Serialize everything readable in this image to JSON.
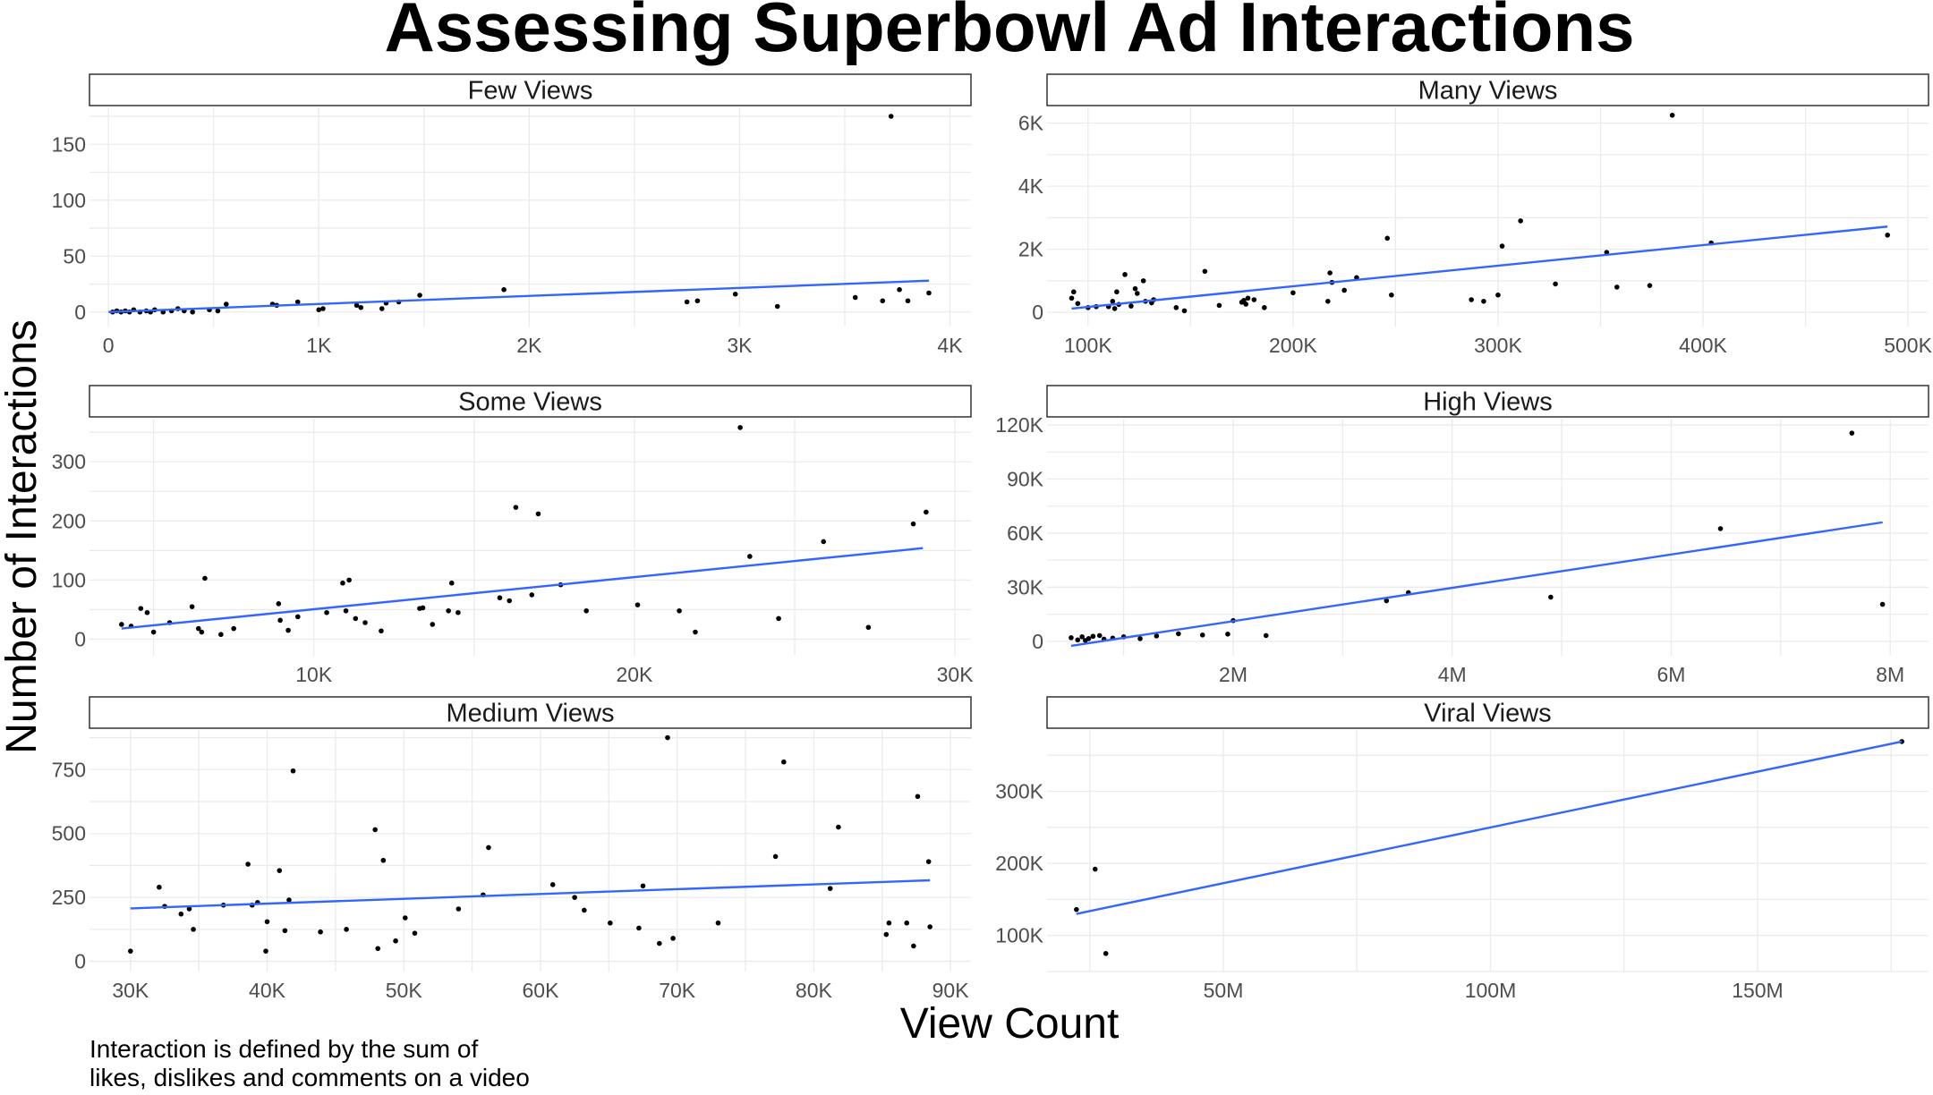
{
  "chart_data": {
    "title": "Assessing Superbowl Ad Interactions",
    "xlabel": "View Count",
    "ylabel": "Number of Interactions",
    "caption_lines": [
      "Interaction is defined by the sum of",
      "likes, dislikes and comments on a video"
    ],
    "panels": [
      {
        "type": "scatter",
        "strip": "Few Views",
        "xlim": [
          -90,
          4100
        ],
        "ylim": [
          -13,
          183
        ],
        "xticks": [
          0,
          1000,
          2000,
          3000,
          4000
        ],
        "xtick_labels": [
          "0",
          "1K",
          "2K",
          "3K",
          "4K"
        ],
        "yticks": [
          0,
          50,
          100,
          150
        ],
        "ytick_labels": [
          "0",
          "50",
          "100",
          "150"
        ],
        "points": [
          [
            20,
            0
          ],
          [
            40,
            1
          ],
          [
            60,
            0
          ],
          [
            80,
            1
          ],
          [
            100,
            0
          ],
          [
            120,
            2
          ],
          [
            150,
            0
          ],
          [
            180,
            1
          ],
          [
            200,
            0
          ],
          [
            220,
            2
          ],
          [
            260,
            0
          ],
          [
            300,
            1
          ],
          [
            330,
            3
          ],
          [
            360,
            1
          ],
          [
            400,
            0
          ],
          [
            480,
            2
          ],
          [
            520,
            1
          ],
          [
            560,
            7
          ],
          [
            780,
            7
          ],
          [
            800,
            6
          ],
          [
            900,
            9
          ],
          [
            1000,
            2
          ],
          [
            1020,
            3
          ],
          [
            1180,
            6
          ],
          [
            1200,
            4
          ],
          [
            1300,
            3
          ],
          [
            1320,
            8
          ],
          [
            1380,
            9
          ],
          [
            1480,
            15
          ],
          [
            1880,
            20
          ],
          [
            2750,
            9
          ],
          [
            2800,
            10
          ],
          [
            2980,
            16
          ],
          [
            3180,
            5
          ],
          [
            3550,
            13
          ],
          [
            3680,
            10
          ],
          [
            3720,
            175
          ],
          [
            3760,
            20
          ],
          [
            3800,
            10
          ],
          [
            3900,
            17
          ]
        ],
        "trend": [
          [
            0,
            0
          ],
          [
            3900,
            28
          ]
        ]
      },
      {
        "type": "scatter",
        "strip": "Many Views",
        "xlim": [
          80000,
          510000
        ],
        "ylim": [
          -450,
          6500
        ],
        "xticks": [
          100000,
          200000,
          300000,
          400000,
          500000
        ],
        "xtick_labels": [
          "100K",
          "200K",
          "300K",
          "400K",
          "500K"
        ],
        "yticks": [
          0,
          2000,
          4000,
          6000
        ],
        "ytick_labels": [
          "0",
          "2K",
          "4K",
          "6K"
        ],
        "points": [
          [
            92000,
            450
          ],
          [
            93000,
            650
          ],
          [
            95000,
            280
          ],
          [
            100000,
            150
          ],
          [
            104000,
            180
          ],
          [
            110000,
            180
          ],
          [
            112000,
            350
          ],
          [
            113000,
            120
          ],
          [
            114000,
            650
          ],
          [
            115000,
            250
          ],
          [
            118000,
            1200
          ],
          [
            121000,
            200
          ],
          [
            123000,
            750
          ],
          [
            124000,
            600
          ],
          [
            127000,
            1000
          ],
          [
            128000,
            350
          ],
          [
            131000,
            300
          ],
          [
            132000,
            400
          ],
          [
            143000,
            150
          ],
          [
            147000,
            50
          ],
          [
            157000,
            1300
          ],
          [
            164000,
            220
          ],
          [
            175000,
            320
          ],
          [
            176000,
            380
          ],
          [
            177000,
            260
          ],
          [
            178000,
            450
          ],
          [
            181000,
            400
          ],
          [
            186000,
            150
          ],
          [
            200000,
            620
          ],
          [
            217000,
            350
          ],
          [
            218000,
            1250
          ],
          [
            219000,
            950
          ],
          [
            225000,
            700
          ],
          [
            231000,
            1100
          ],
          [
            246000,
            2350
          ],
          [
            248000,
            550
          ],
          [
            287000,
            400
          ],
          [
            293000,
            350
          ],
          [
            300000,
            550
          ],
          [
            302000,
            2100
          ],
          [
            311000,
            2900
          ],
          [
            328000,
            900
          ],
          [
            353000,
            1900
          ],
          [
            358000,
            800
          ],
          [
            374000,
            850
          ],
          [
            385000,
            6250
          ],
          [
            404000,
            2200
          ],
          [
            490000,
            2450
          ]
        ],
        "trend": [
          [
            92000,
            120
          ],
          [
            490000,
            2720
          ]
        ]
      },
      {
        "type": "scatter",
        "strip": "Some Views",
        "xlim": [
          3000,
          30500
        ],
        "ylim": [
          -28,
          373
        ],
        "xticks": [
          10000,
          20000,
          30000
        ],
        "xtick_labels": [
          "10K",
          "20K",
          "30K"
        ],
        "yticks": [
          0,
          100,
          200,
          300
        ],
        "ytick_labels": [
          "0",
          "100",
          "200",
          "300"
        ],
        "points": [
          [
            4000,
            25
          ],
          [
            4300,
            22
          ],
          [
            4600,
            52
          ],
          [
            4800,
            45
          ],
          [
            5000,
            12
          ],
          [
            5500,
            28
          ],
          [
            6200,
            55
          ],
          [
            6400,
            18
          ],
          [
            6500,
            12
          ],
          [
            6600,
            103
          ],
          [
            7100,
            8
          ],
          [
            7500,
            18
          ],
          [
            8900,
            60
          ],
          [
            8950,
            32
          ],
          [
            9200,
            15
          ],
          [
            9500,
            38
          ],
          [
            10400,
            45
          ],
          [
            10900,
            95
          ],
          [
            11000,
            48
          ],
          [
            11100,
            100
          ],
          [
            11300,
            35
          ],
          [
            11600,
            28
          ],
          [
            12100,
            14
          ],
          [
            13300,
            52
          ],
          [
            13400,
            53
          ],
          [
            13700,
            25
          ],
          [
            14200,
            48
          ],
          [
            14300,
            95
          ],
          [
            14500,
            45
          ],
          [
            15800,
            70
          ],
          [
            16100,
            65
          ],
          [
            16300,
            223
          ],
          [
            16800,
            75
          ],
          [
            17000,
            212
          ],
          [
            17700,
            92
          ],
          [
            18500,
            48
          ],
          [
            20100,
            58
          ],
          [
            21400,
            48
          ],
          [
            21900,
            12
          ],
          [
            23300,
            358
          ],
          [
            23600,
            140
          ],
          [
            24500,
            35
          ],
          [
            25900,
            165
          ],
          [
            27300,
            20
          ],
          [
            28700,
            195
          ],
          [
            29100,
            215
          ]
        ],
        "trend": [
          [
            4000,
            18
          ],
          [
            29000,
            154
          ]
        ]
      },
      {
        "type": "scatter",
        "strip": "High Views",
        "xlim": [
          300000,
          8350000
        ],
        "ylim": [
          -8000,
          123500
        ],
        "xticks": [
          2000000,
          4000000,
          6000000,
          8000000
        ],
        "xtick_labels": [
          "2M",
          "4M",
          "6M",
          "8M"
        ],
        "yticks": [
          0,
          30000,
          60000,
          90000,
          120000
        ],
        "ytick_labels": [
          "0",
          "30K",
          "60K",
          "90K",
          "120K"
        ],
        "points": [
          [
            520000,
            2000
          ],
          [
            580000,
            800
          ],
          [
            620000,
            2500
          ],
          [
            650000,
            500
          ],
          [
            680000,
            1500
          ],
          [
            720000,
            2800
          ],
          [
            780000,
            3200
          ],
          [
            820000,
            1200
          ],
          [
            900000,
            1800
          ],
          [
            1000000,
            2500
          ],
          [
            1150000,
            1500
          ],
          [
            1300000,
            3000
          ],
          [
            1500000,
            4200
          ],
          [
            1720000,
            3500
          ],
          [
            1950000,
            4000
          ],
          [
            2000000,
            11500
          ],
          [
            2300000,
            3200
          ],
          [
            3400000,
            22500
          ],
          [
            3600000,
            27000
          ],
          [
            4900000,
            24500
          ],
          [
            6450000,
            62500
          ],
          [
            7650000,
            115500
          ],
          [
            7930000,
            20500
          ]
        ],
        "trend": [
          [
            520000,
            -2500
          ],
          [
            7930000,
            66000
          ]
        ]
      },
      {
        "type": "scatter",
        "strip": "Medium Views",
        "xlim": [
          27000,
          91500
        ],
        "ylim": [
          -40,
          905
        ],
        "xticks": [
          30000,
          40000,
          50000,
          60000,
          70000,
          80000,
          90000
        ],
        "xtick_labels": [
          "30K",
          "40K",
          "50K",
          "60K",
          "70K",
          "80K",
          "90K"
        ],
        "yticks": [
          0,
          250,
          500,
          750
        ],
        "ytick_labels": [
          "0",
          "250",
          "500",
          "750"
        ],
        "points": [
          [
            30000,
            40
          ],
          [
            32100,
            290
          ],
          [
            32500,
            215
          ],
          [
            33700,
            185
          ],
          [
            34300,
            205
          ],
          [
            34600,
            125
          ],
          [
            36800,
            220
          ],
          [
            38600,
            380
          ],
          [
            38900,
            220
          ],
          [
            39300,
            230
          ],
          [
            39900,
            40
          ],
          [
            40000,
            155
          ],
          [
            40900,
            355
          ],
          [
            41300,
            120
          ],
          [
            41600,
            240
          ],
          [
            41900,
            745
          ],
          [
            43900,
            115
          ],
          [
            45800,
            125
          ],
          [
            47900,
            515
          ],
          [
            48100,
            50
          ],
          [
            48500,
            395
          ],
          [
            49400,
            80
          ],
          [
            50100,
            170
          ],
          [
            50800,
            110
          ],
          [
            54000,
            205
          ],
          [
            55800,
            260
          ],
          [
            56200,
            445
          ],
          [
            60900,
            300
          ],
          [
            62500,
            250
          ],
          [
            63200,
            200
          ],
          [
            65100,
            150
          ],
          [
            67200,
            130
          ],
          [
            67500,
            295
          ],
          [
            68700,
            70
          ],
          [
            69300,
            875
          ],
          [
            69700,
            90
          ],
          [
            73000,
            150
          ],
          [
            77200,
            410
          ],
          [
            77800,
            780
          ],
          [
            81200,
            285
          ],
          [
            81800,
            525
          ],
          [
            85300,
            105
          ],
          [
            85500,
            150
          ],
          [
            86800,
            150
          ],
          [
            87300,
            60
          ],
          [
            87600,
            645
          ],
          [
            88400,
            390
          ],
          [
            88500,
            135
          ]
        ],
        "trend": [
          [
            30000,
            207
          ],
          [
            88500,
            317
          ]
        ]
      },
      {
        "type": "scatter",
        "strip": "Viral Views",
        "xlim": [
          17000000,
          182000000
        ],
        "ylim": [
          50000,
          385000
        ],
        "xticks": [
          50000000,
          100000000,
          150000000
        ],
        "xtick_labels": [
          "50M",
          "100M",
          "150M"
        ],
        "yticks": [
          100000,
          200000,
          300000
        ],
        "ytick_labels": [
          "100K",
          "200K",
          "300K"
        ],
        "points": [
          [
            22500000,
            136000
          ],
          [
            26000000,
            192000
          ],
          [
            28000000,
            75000
          ],
          [
            177000000,
            369000
          ]
        ],
        "trend": [
          [
            22500000,
            130000
          ],
          [
            177000000,
            369000
          ]
        ]
      }
    ]
  }
}
